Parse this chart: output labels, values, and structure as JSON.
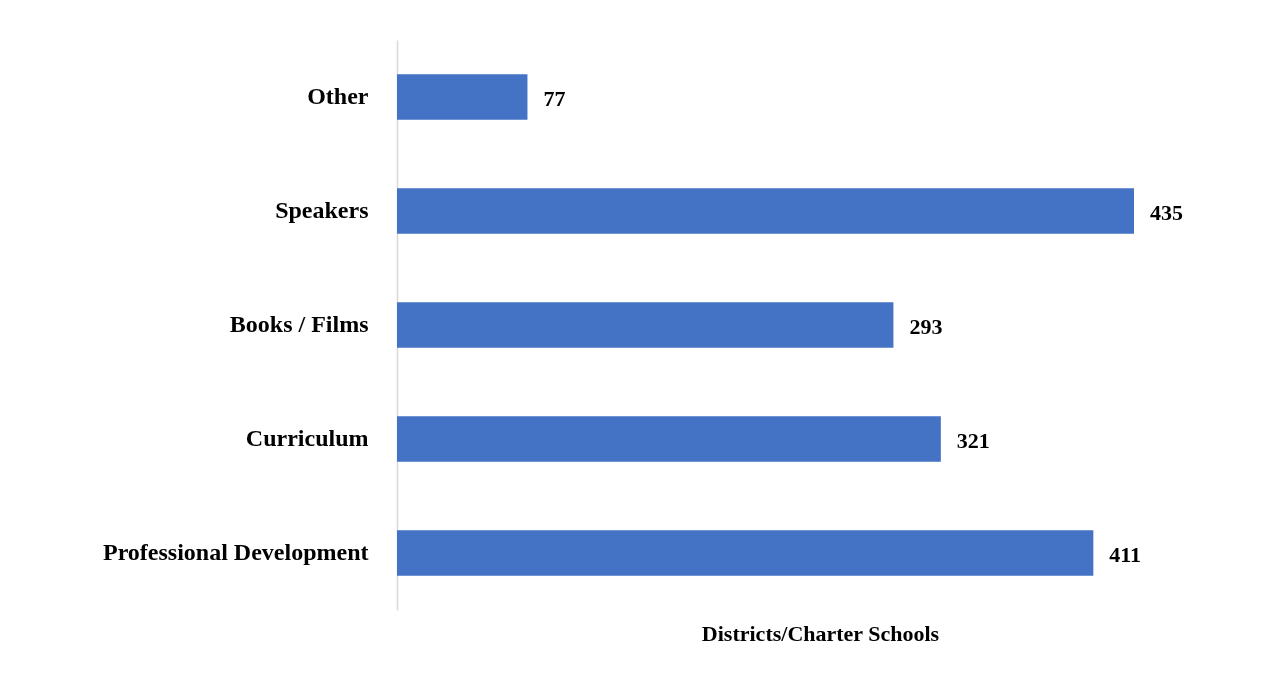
{
  "chart_data": {
    "type": "bar",
    "orientation": "horizontal",
    "xlabel": "Districts/Charter Schools",
    "categories": [
      "Other",
      "Speakers",
      "Books / Films",
      "Curriculum",
      "Professional Development"
    ],
    "values": [
      77,
      435,
      293,
      321,
      411
    ],
    "color": "#4472c4",
    "data_labels": true,
    "grid": false
  }
}
